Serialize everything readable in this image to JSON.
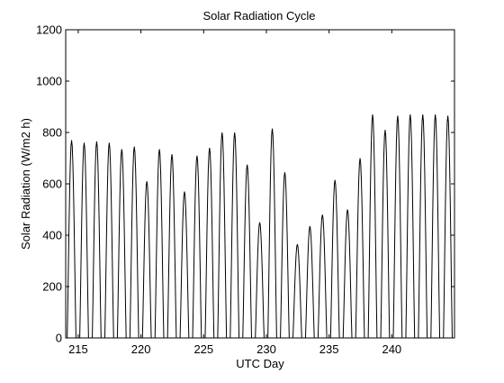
{
  "chart_data": {
    "type": "line",
    "title": "Solar Radiation Cycle",
    "xlabel": "UTC Day",
    "ylabel": "Solar Radiation (W/m2 h)",
    "xlim": [
      214,
      245
    ],
    "ylim": [
      0,
      1200
    ],
    "xticks": [
      215,
      220,
      225,
      230,
      235,
      240
    ],
    "yticks": [
      0,
      200,
      400,
      600,
      800,
      1000,
      1200
    ],
    "grid": false,
    "legend": "none",
    "line_color": "#000000",
    "daylight_window_days": [
      0.12,
      0.82
    ],
    "series": [
      {
        "days": [
          214,
          215,
          216,
          217,
          218,
          219,
          220,
          221,
          222,
          223,
          224,
          225,
          226,
          227,
          228,
          229,
          230,
          231,
          232,
          233,
          234,
          235,
          236,
          237,
          238,
          239,
          240,
          241,
          242,
          243,
          244
        ],
        "daily_peak": [
          770,
          760,
          765,
          760,
          735,
          745,
          610,
          735,
          715,
          570,
          710,
          740,
          800,
          800,
          675,
          450,
          815,
          645,
          365,
          435,
          480,
          615,
          500,
          700,
          870,
          810,
          865,
          870,
          870,
          870,
          865
        ]
      }
    ]
  }
}
